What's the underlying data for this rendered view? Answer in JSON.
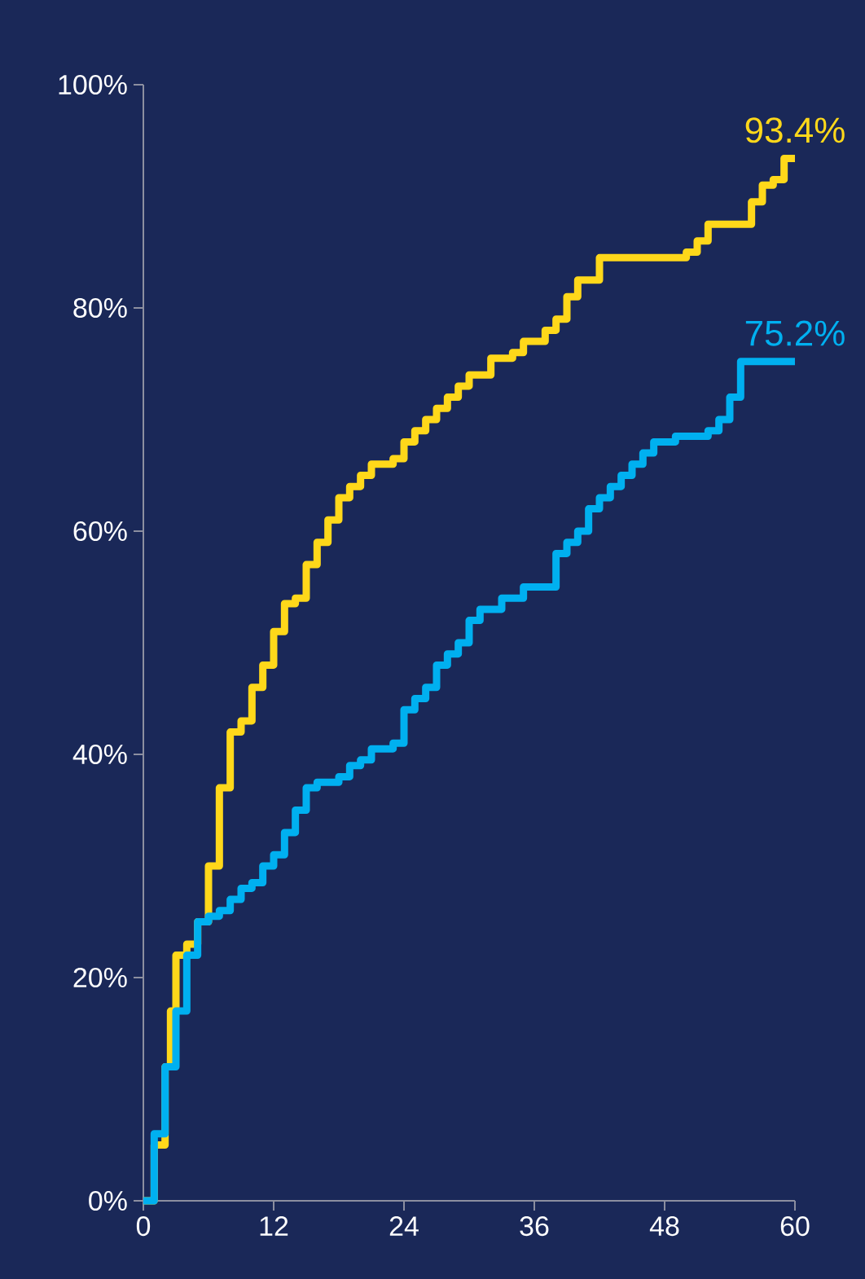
{
  "chart_data": {
    "type": "step",
    "xlim": [
      0,
      60
    ],
    "xticks": [
      0,
      12,
      24,
      36,
      48,
      60
    ],
    "ylim": [
      0,
      100
    ],
    "yticks": [
      {
        "value": 0,
        "label": "0%"
      },
      {
        "value": 20,
        "label": "20%"
      },
      {
        "value": 40,
        "label": "40%"
      },
      {
        "value": 60,
        "label": "60%"
      },
      {
        "value": 80,
        "label": "80%"
      },
      {
        "value": 100,
        "label": "100%"
      }
    ],
    "grid": false,
    "marker": "none",
    "line_style": "solid",
    "series": [
      {
        "color": "#ffd81a",
        "x": [
          0,
          1,
          2,
          2.5,
          3,
          4,
          5,
          6,
          7,
          8,
          9,
          10,
          11,
          12,
          13,
          14,
          15,
          16,
          17,
          18,
          19,
          20,
          21,
          23,
          24,
          25,
          26,
          27,
          28,
          29,
          30,
          32,
          34,
          35,
          37,
          38,
          39,
          40,
          42,
          50,
          51,
          52,
          56,
          57,
          58,
          59,
          60
        ],
        "values": [
          0,
          5,
          12,
          17,
          22,
          23,
          25,
          30,
          37,
          42,
          43,
          46,
          48,
          51,
          53.5,
          54,
          57,
          59,
          61,
          63,
          64,
          65,
          66,
          66.5,
          68,
          69,
          70,
          71,
          72,
          73,
          74,
          75.5,
          76,
          77,
          78,
          79,
          81,
          82.5,
          84.5,
          85,
          86,
          87.5,
          89.5,
          91,
          91.5,
          93.4,
          93.4
        ]
      },
      {
        "color": "#00b0f0",
        "x": [
          0,
          1,
          2,
          3,
          4,
          5,
          6,
          7,
          8,
          9,
          10,
          11,
          12,
          13,
          14,
          15,
          16,
          18,
          19,
          20,
          21,
          23,
          24,
          25,
          26,
          27,
          28,
          29,
          30,
          31,
          33,
          35,
          37,
          38,
          39,
          40,
          41,
          42,
          43,
          44,
          45,
          46,
          47,
          49,
          52,
          53,
          54,
          55,
          60
        ],
        "values": [
          0,
          6,
          12,
          17,
          22,
          25,
          25.5,
          26,
          27,
          28,
          28.5,
          30,
          31,
          33,
          35,
          37,
          37.5,
          38,
          39,
          39.5,
          40.5,
          41,
          44,
          45,
          46,
          48,
          49,
          50,
          52,
          53,
          54,
          55,
          55,
          58,
          59,
          60,
          62,
          63,
          64,
          65,
          66,
          67,
          68,
          68.5,
          69,
          70,
          72,
          75.2,
          75.2
        ]
      }
    ],
    "annotations": [
      {
        "text": "93.4%",
        "x": 60,
        "y": 93.4
      },
      {
        "text": "75.2%",
        "x": 60,
        "y": 75.2
      }
    ]
  }
}
